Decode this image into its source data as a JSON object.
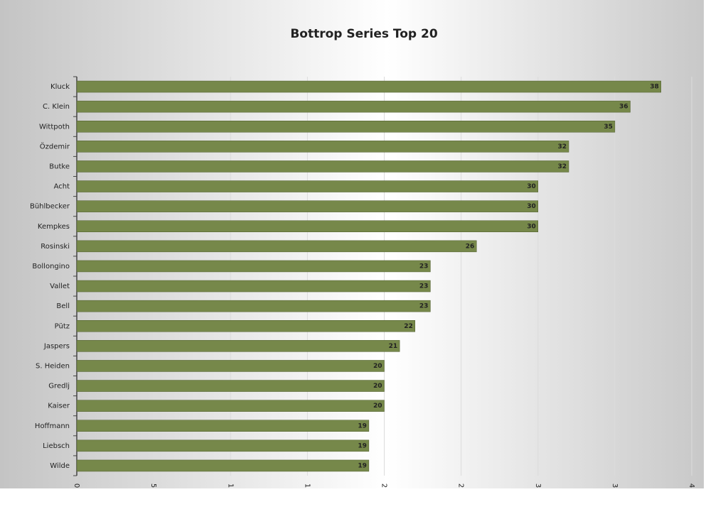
{
  "chart_data": {
    "type": "bar",
    "orientation": "horizontal",
    "title": "Bottrop Series Top 20",
    "categories": [
      "Kluck",
      "C. Klein",
      "Wittpoth",
      "Özdemir",
      "Butke",
      "Acht",
      "Bühlbecker",
      "Kempkes",
      "Rosinski",
      "Bollongino",
      "Vallet",
      "Bell",
      "Pütz",
      "Jaspers",
      "S. Heiden",
      "Gredlj",
      "Kaiser",
      "Hoffmann",
      "Liebsch",
      "Wilde"
    ],
    "values": [
      38,
      36,
      35,
      32,
      32,
      30,
      30,
      30,
      26,
      23,
      23,
      23,
      22,
      21,
      20,
      20,
      20,
      19,
      19,
      19
    ],
    "color": "#76884a",
    "xlim": [
      0,
      40
    ],
    "xticks": [
      0,
      5,
      {
        "value": 10,
        "label": "1"
      },
      {
        "value": 15,
        "label": "1"
      },
      {
        "value": 20,
        "label": "2"
      },
      {
        "value": 25,
        "label": "2"
      },
      {
        "value": 30,
        "label": "3"
      },
      {
        "value": 35,
        "label": "3"
      },
      {
        "value": 40,
        "label": "4"
      }
    ],
    "grid": true
  }
}
